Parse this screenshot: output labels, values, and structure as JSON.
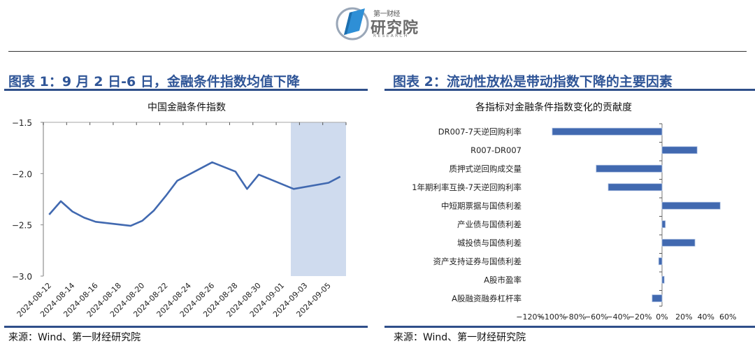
{
  "header": {
    "logo": {
      "line1": "第一财经",
      "line2": "研究院",
      "line3": "RESEARCH"
    }
  },
  "figures": [
    {
      "title": "图表 1：9 月 2 日-6 日，金融条件指数均值下降",
      "chart_title": "中国金融条件指数",
      "source": "来源：Wind、第一财经研究院"
    },
    {
      "title": "图表 2：流动性放松是带动指数下降的主要因素",
      "chart_title": "各指标对金融条件指数变化的贡献度",
      "source": "来源：Wind、第一财经研究院"
    }
  ],
  "colors": {
    "accent": "#2f5597",
    "rule": "#2f4f8a",
    "series": "#4169b0",
    "highlight": "#cfdbee"
  },
  "chart_data": [
    {
      "type": "line",
      "title": "中国金融条件指数",
      "xlabel": "",
      "ylabel": "",
      "ylim": [
        -3.0,
        -1.5
      ],
      "yticks": [
        "-1.5",
        "-2.0",
        "-2.5",
        "-3.0"
      ],
      "xtick_labels": [
        "2024-08-12",
        "2024-08-14",
        "2024-08-16",
        "2024-08-18",
        "2024-08-20",
        "2024-08-22",
        "2024-08-24",
        "2024-08-26",
        "2024-08-28",
        "2024-08-30",
        "2024-09-01",
        "2024-09-03",
        "2024-09-05"
      ],
      "grid": false,
      "highlight_range": [
        "2024-09-01",
        "2024-09-06"
      ],
      "series": [
        {
          "name": "中国金融条件指数",
          "x": [
            "2024-08-12",
            "2024-08-13",
            "2024-08-14",
            "2024-08-15",
            "2024-08-16",
            "2024-08-19",
            "2024-08-20",
            "2024-08-21",
            "2024-08-22",
            "2024-08-23",
            "2024-08-26",
            "2024-08-28",
            "2024-08-29",
            "2024-08-30",
            "2024-09-02",
            "2024-09-05",
            "2024-09-06"
          ],
          "values": [
            -2.4,
            -2.27,
            -2.37,
            -2.43,
            -2.47,
            -2.51,
            -2.46,
            -2.36,
            -2.22,
            -2.07,
            -1.89,
            -1.98,
            -2.15,
            -2.01,
            -2.15,
            -2.09,
            -2.03
          ]
        }
      ]
    },
    {
      "type": "bar",
      "orientation": "horizontal",
      "title": "各指标对金融条件指数变化的贡献度",
      "xlabel": "",
      "ylabel": "",
      "xlim": [
        -1.2,
        0.6
      ],
      "xtick_labels": [
        "-120%",
        "-100%",
        "-80%",
        "-60%",
        "-40%",
        "-20%",
        "0%",
        "20%",
        "40%",
        "60%"
      ],
      "grid": false,
      "categories": [
        "DR007-7天逆回购利率",
        "R007-DR007",
        "质押式逆回购成交量",
        "1年期利率互换-7天逆回购利率",
        "中短期票据与国债利差",
        "产业债与国债利差",
        "城投债与国债利差",
        "资产支持证券与国债利差",
        "A股市盈率",
        "A股融资融券杠杆率"
      ],
      "values": [
        -1.0,
        0.32,
        -0.6,
        -0.49,
        0.53,
        0.03,
        0.3,
        -0.03,
        0.02,
        -0.09
      ]
    }
  ]
}
